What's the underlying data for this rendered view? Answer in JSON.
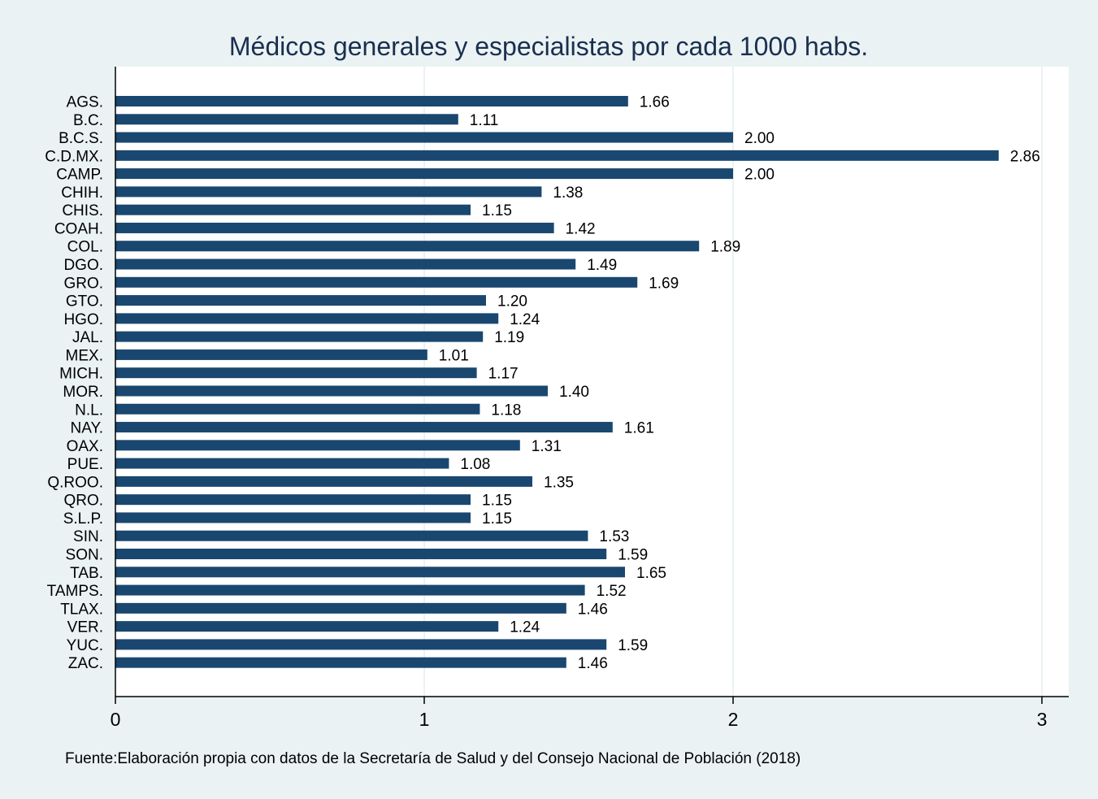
{
  "chart_data": {
    "type": "bar",
    "orientation": "horizontal",
    "title": "Médicos generales y especialistas por cada 1000 habs.",
    "xlabel": "",
    "ylabel": "",
    "categories": [
      "AGS.",
      "B.C.",
      "B.C.S.",
      "C.D.MX.",
      "CAMP.",
      "CHIH.",
      "CHIS.",
      "COAH.",
      "COL.",
      "DGO.",
      "GRO.",
      "GTO.",
      "HGO.",
      "JAL.",
      "MEX.",
      "MICH.",
      "MOR.",
      "N.L.",
      "NAY.",
      "OAX.",
      "PUE.",
      "Q.ROO.",
      "QRO.",
      "S.L.P.",
      "SIN.",
      "SON.",
      "TAB.",
      "TAMPS.",
      "TLAX.",
      "VER.",
      "YUC.",
      "ZAC."
    ],
    "values": [
      1.66,
      1.11,
      2.0,
      2.86,
      2.0,
      1.38,
      1.15,
      1.42,
      1.89,
      1.49,
      1.69,
      1.2,
      1.24,
      1.19,
      1.01,
      1.17,
      1.4,
      1.18,
      1.61,
      1.31,
      1.08,
      1.35,
      1.15,
      1.15,
      1.53,
      1.59,
      1.65,
      1.52,
      1.46,
      1.24,
      1.59,
      1.46
    ],
    "value_labels": [
      "1.66",
      "1.11",
      "2.00",
      "2.86",
      "2.00",
      "1.38",
      "1.15",
      "1.42",
      "1.89",
      "1.49",
      "1.69",
      "1.20",
      "1.24",
      "1.19",
      "1.01",
      "1.17",
      "1.40",
      "1.18",
      "1.61",
      "1.31",
      "1.08",
      "1.35",
      "1.15",
      "1.15",
      "1.53",
      "1.59",
      "1.65",
      "1.52",
      "1.46",
      "1.24",
      "1.59",
      "1.46"
    ],
    "xlim": [
      0,
      3
    ],
    "xticks": [
      0,
      1,
      2,
      3
    ],
    "xtick_labels": [
      "0",
      "1",
      "2",
      "3"
    ],
    "grid": true,
    "bar_color": "#1a476f",
    "background_color": "#eaf2f3",
    "plot_background_color": "#ffffff",
    "grid_color": "#eaf2f3",
    "title_color": "#1a2f4f"
  },
  "footnote": "Fuente:Elaboración propia con datos de la Secretaría de Salud y del Consejo Nacional de Población (2018)"
}
